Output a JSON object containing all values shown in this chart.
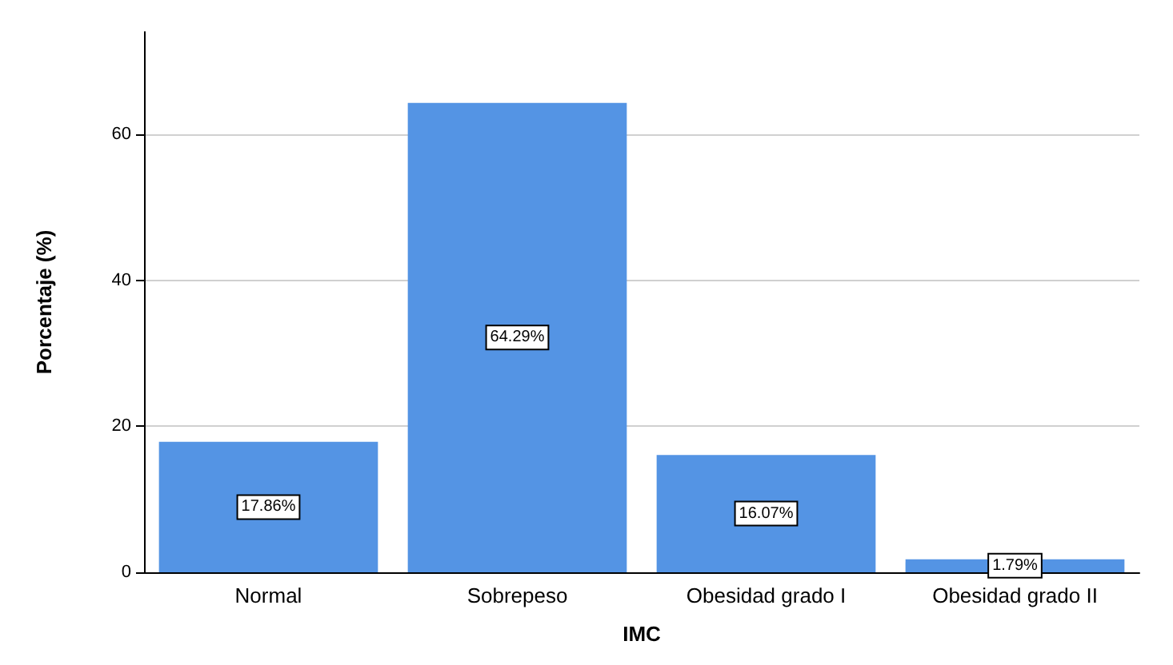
{
  "chart_data": {
    "type": "bar",
    "xlabel": "IMC",
    "ylabel": "Porcentaje (%)",
    "categories": [
      "Normal",
      "Sobrepeso",
      "Obesidad grado I",
      "Obesidad grado II"
    ],
    "values": [
      17.86,
      64.29,
      16.07,
      1.79
    ],
    "color": "#5494e4",
    "value_labels": [
      "17.86%",
      "64.29%",
      "16.07%",
      "1.79%"
    ],
    "ylim": [
      0,
      74
    ],
    "yticks": [
      0,
      20,
      40,
      60
    ],
    "grid": "y"
  }
}
